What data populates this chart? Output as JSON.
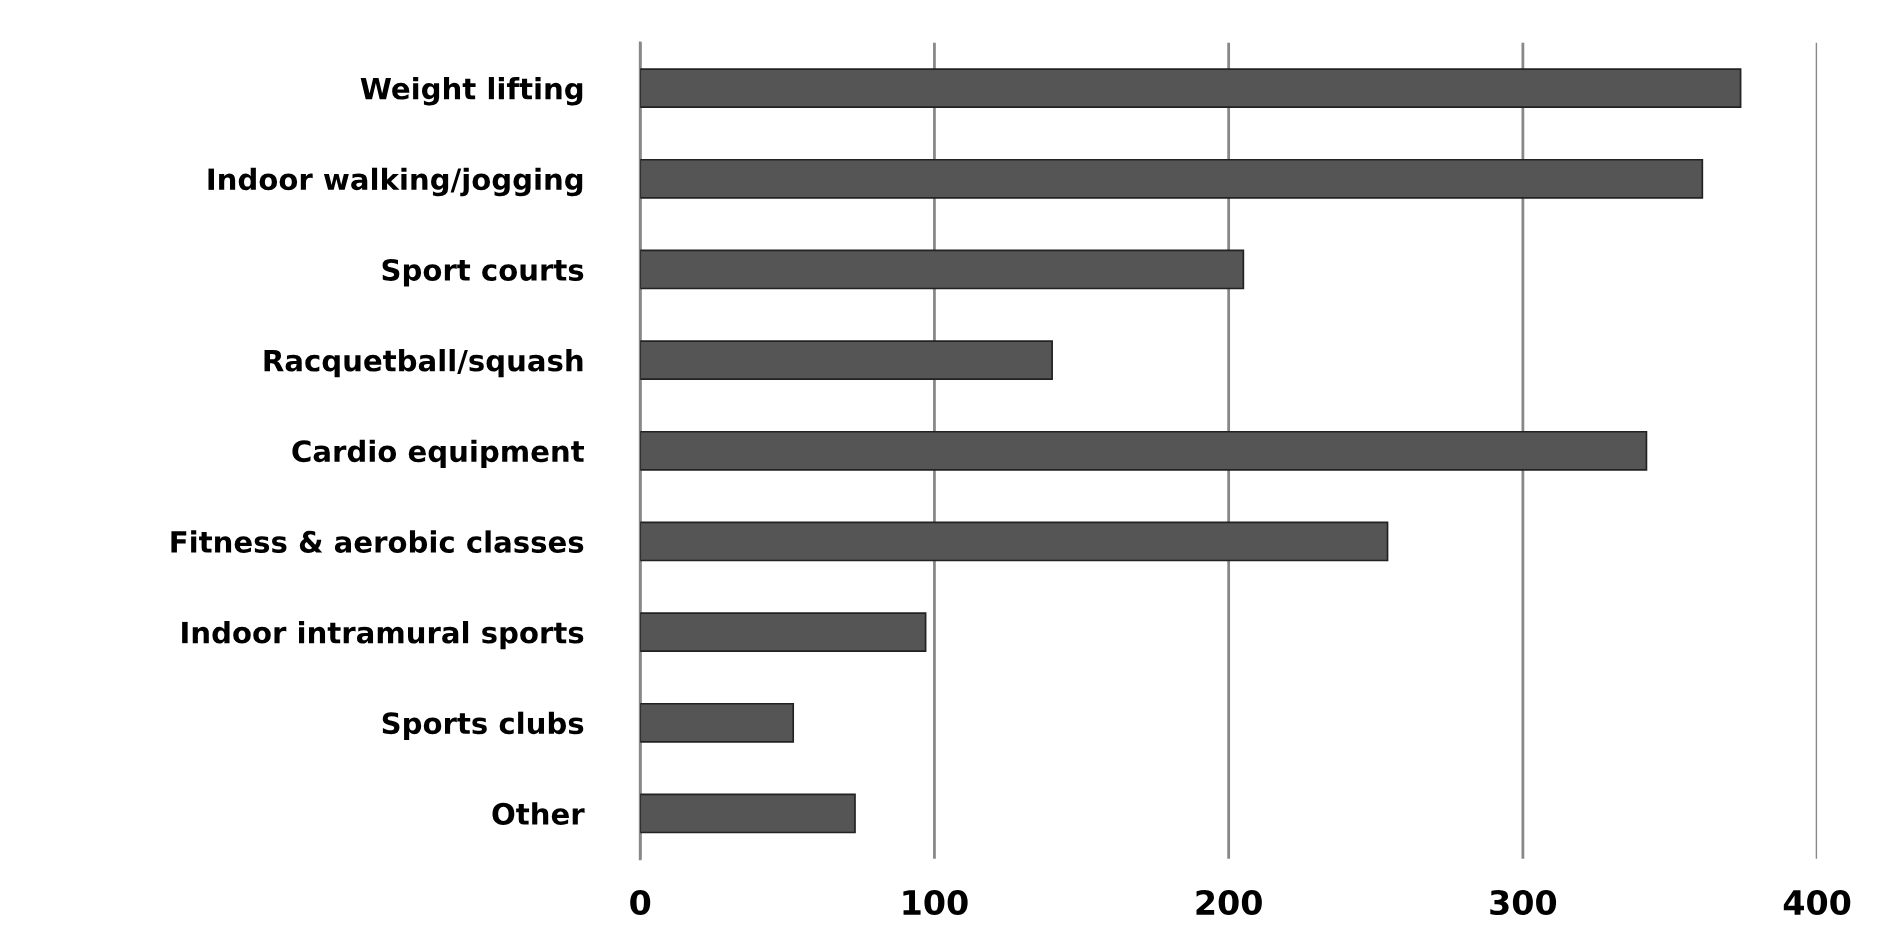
{
  "chart_data": {
    "type": "bar",
    "orientation": "horizontal",
    "categories": [
      "Weight lifting",
      "Indoor walking/jogging",
      "Sport courts",
      "Racquetball/squash",
      "Cardio equipment",
      "Fitness & aerobic classes",
      "Indoor intramural sports",
      "Sports clubs",
      "Other"
    ],
    "values": [
      374,
      361,
      205,
      140,
      342,
      254,
      97,
      52,
      73
    ],
    "color": "#555555",
    "xlim": [
      0,
      400
    ],
    "xticks": [
      0,
      100,
      200,
      300,
      400
    ],
    "grid": "x"
  }
}
